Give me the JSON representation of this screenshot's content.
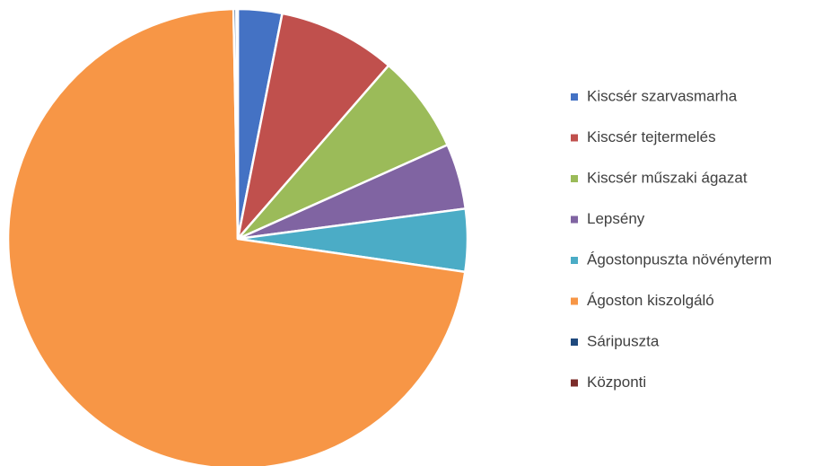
{
  "chart_data": {
    "type": "pie",
    "categories": [
      "Kiscsér szarvasmarha",
      "Kiscsér tejtermelés",
      "Kiscsér műszaki ágazat",
      "Lepsény",
      "Ágostonpuszta növényterm",
      "Ágoston kiszolgáló",
      "Sáripuszta",
      "Központi"
    ],
    "values": [
      3.1,
      8.3,
      6.9,
      4.6,
      4.4,
      72.4,
      0.2,
      0.1
    ],
    "colors": [
      "#4472c4",
      "#c0504d",
      "#9bbb59",
      "#8064a2",
      "#4bacc6",
      "#f79646",
      "#1f497d",
      "#7b2c2a"
    ],
    "legend": "right"
  }
}
